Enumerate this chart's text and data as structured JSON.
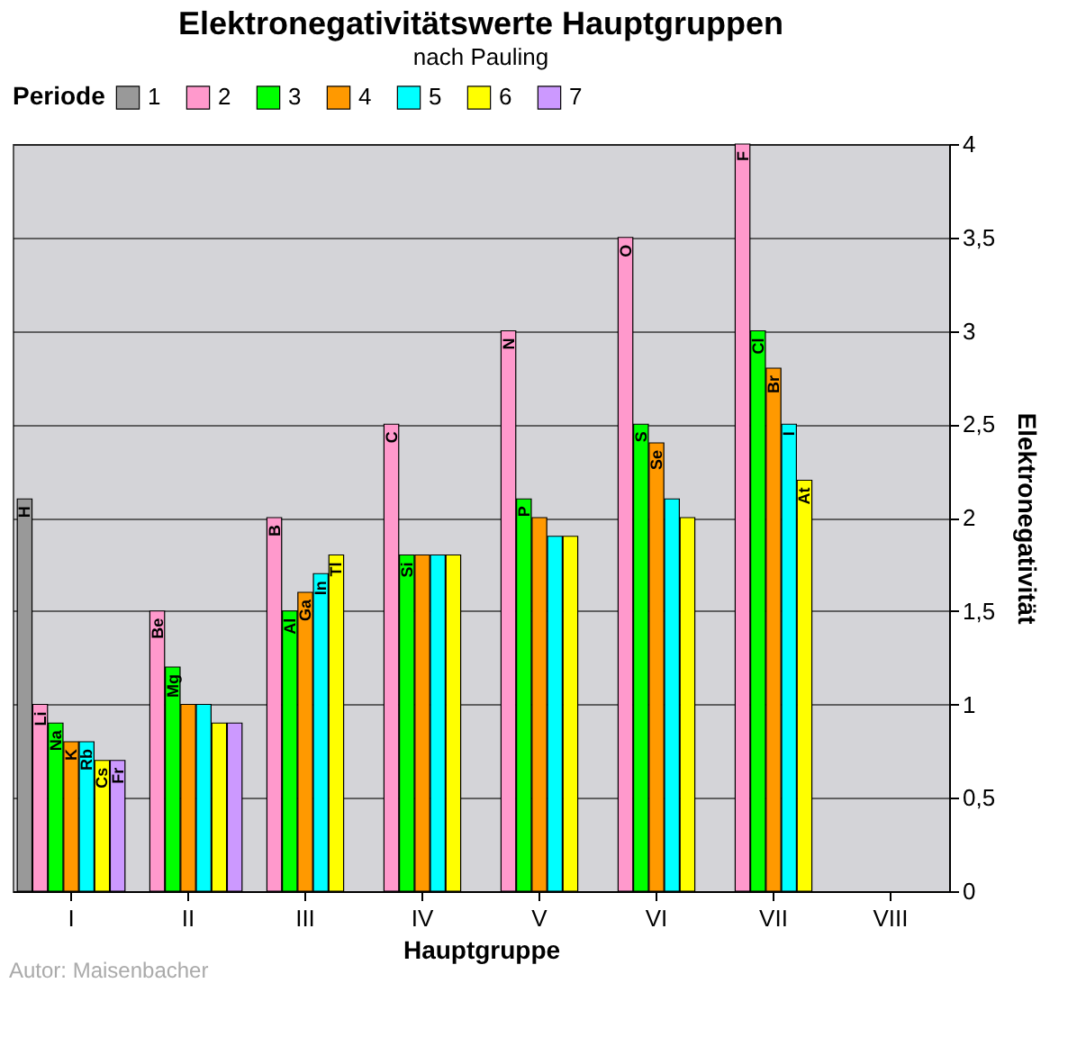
{
  "chart_data": {
    "type": "bar",
    "title": "Elektronegativitätswerte Hauptgruppen",
    "subtitle": "nach Pauling",
    "xlabel": "Hauptgruppe",
    "ylabel": "Elektronegativität",
    "legend_title": "Periode",
    "annotations": [
      "Autor: Maisenbacher"
    ],
    "categories": [
      "I",
      "II",
      "III",
      "IV",
      "V",
      "VI",
      "VII",
      "VIII"
    ],
    "series": [
      {
        "name": "1",
        "color": "#999999",
        "values": [
          2.1,
          null,
          null,
          null,
          null,
          null,
          null,
          null
        ],
        "value_labels": [
          "H",
          null,
          null,
          null,
          null,
          null,
          null,
          null
        ]
      },
      {
        "name": "2",
        "color": "#ff99cc",
        "values": [
          1.0,
          1.5,
          2.0,
          2.5,
          3.0,
          3.5,
          4.0,
          null
        ],
        "value_labels": [
          "Li",
          "Be",
          "B",
          "C",
          "N",
          "O",
          "F",
          null
        ]
      },
      {
        "name": "3",
        "color": "#00ff00",
        "values": [
          0.9,
          1.2,
          1.5,
          1.8,
          2.1,
          2.5,
          3.0,
          null
        ],
        "value_labels": [
          "Na",
          "Mg",
          "Al",
          "Si",
          "P",
          "S",
          "Cl",
          null
        ]
      },
      {
        "name": "4",
        "color": "#ff9900",
        "values": [
          0.8,
          1.0,
          1.6,
          1.8,
          2.0,
          2.4,
          2.8,
          null
        ],
        "value_labels": [
          "K",
          null,
          "Ga",
          null,
          null,
          "Se",
          "Br",
          null
        ]
      },
      {
        "name": "5",
        "color": "#00ffff",
        "values": [
          0.8,
          1.0,
          1.7,
          1.8,
          1.9,
          2.1,
          2.5,
          null
        ],
        "value_labels": [
          "Rb",
          null,
          "In",
          null,
          null,
          null,
          "I",
          null
        ]
      },
      {
        "name": "6",
        "color": "#ffff00",
        "values": [
          0.7,
          0.9,
          1.8,
          1.8,
          1.9,
          2.0,
          2.2,
          null
        ],
        "value_labels": [
          "Cs",
          null,
          "Tl",
          null,
          null,
          null,
          "At",
          null
        ]
      },
      {
        "name": "7",
        "color": "#cc99ff",
        "values": [
          0.7,
          0.9,
          null,
          null,
          null,
          null,
          null,
          null
        ],
        "value_labels": [
          "Fr",
          null,
          null,
          null,
          null,
          null,
          null,
          null
        ]
      }
    ],
    "ylim": [
      0,
      4
    ],
    "yticks": [
      0,
      {
        "value": 0.5,
        "label": "0,5"
      },
      1,
      {
        "value": 1.5,
        "label": "1,5"
      },
      2,
      {
        "value": 2.5,
        "label": "2,5"
      },
      3,
      {
        "value": 3.5,
        "label": "3,5"
      },
      4
    ],
    "grid": "y",
    "legend": "top"
  }
}
